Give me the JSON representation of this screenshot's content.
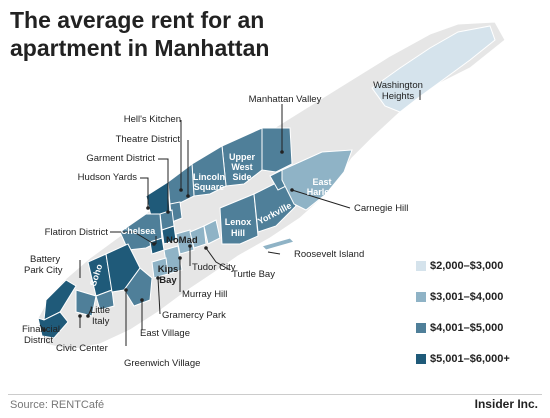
{
  "title": "The average rent for an apartment in Manhattan",
  "source_prefix": "Source: ",
  "source_name": "RENTCafé",
  "brand": "Insider Inc.",
  "legend": [
    {
      "label": "$2,000–$3,000",
      "color": "#d5e3ec"
    },
    {
      "label": "$3,001–$4,000",
      "color": "#8fb3c6"
    },
    {
      "label": "$4,001–$5,000",
      "color": "#4f7f99"
    },
    {
      "label": "$5,001–$6,000+",
      "color": "#1f5a79"
    }
  ],
  "neighborhoods": {
    "washington_heights": {
      "label1": "Washington",
      "label2": "Heights",
      "tier": 1
    },
    "manhattan_valley": {
      "label": "Manhattan Valley",
      "tier": 3
    },
    "hells_kitchen": {
      "label": "Hell's Kitchen",
      "tier": 3
    },
    "theatre_district": {
      "label": "Theatre District",
      "tier": 3
    },
    "garment_district": {
      "label": "Garment District",
      "tier": 3
    },
    "hudson_yards": {
      "label": "Hudson Yards",
      "tier": 4
    },
    "lincoln_square": {
      "label1": "Lincoln",
      "label2": "Square",
      "tier": 3
    },
    "upper_west_side": {
      "label1": "Upper",
      "label2": "West",
      "label3": "Side",
      "tier": 3
    },
    "east_harlem": {
      "label1": "East",
      "label2": "Harlem",
      "tier": 2
    },
    "carnegie_hill": {
      "label": "Carnegie Hill",
      "tier": 3
    },
    "chelsea": {
      "label": "Chelsea",
      "tier": 3
    },
    "nomad": {
      "label": "NoMad",
      "tier": 4
    },
    "flatiron_district": {
      "label": "Flatiron District",
      "tier": 4
    },
    "lenox_hill": {
      "label1": "Lenox",
      "label2": "Hill",
      "tier": 3
    },
    "yorkville": {
      "label": "Yorkville",
      "tier": 3
    },
    "roosevelt_island": {
      "label": "Roosevelt Island",
      "tier": 2
    },
    "battery_park_city": {
      "label1": "Battery",
      "label2": "Park City",
      "tier": 4
    },
    "soho": {
      "label": "Soho",
      "tier": 4
    },
    "kips_bay": {
      "label1": "Kips",
      "label2": "Bay",
      "tier": 2
    },
    "tudor_city": {
      "label": "Tudor City",
      "tier": 2
    },
    "turtle_bay": {
      "label": "Turtle Bay",
      "tier": 2
    },
    "murray_hill": {
      "label": "Murray Hill",
      "tier": 2
    },
    "gramercy_park": {
      "label": "Gramercy Park",
      "tier": 2
    },
    "financial_district": {
      "label1": "Financial",
      "label2": "District",
      "tier": 4
    },
    "little_italy": {
      "label1": "Little",
      "label2": "Italy",
      "tier": 3
    },
    "civic_center": {
      "label": "Civic Center",
      "tier": 3
    },
    "east_village": {
      "label": "East Village",
      "tier": 3
    },
    "greenwich_village": {
      "label": "Greenwich Village",
      "tier": 4
    }
  }
}
